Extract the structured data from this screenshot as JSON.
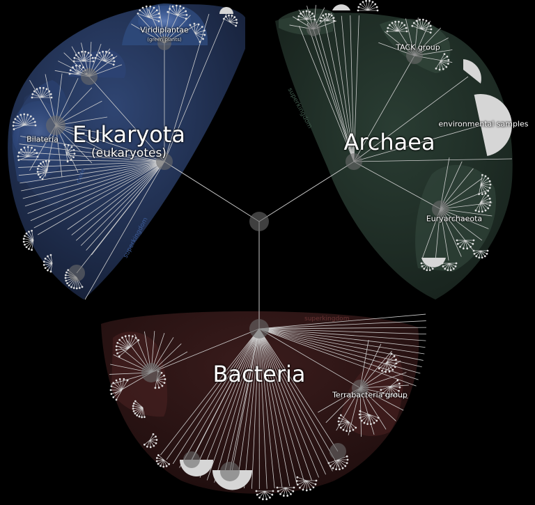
{
  "colors": {
    "background": "#000000",
    "eukaryota_region": "#233356",
    "eukaryota_highlight": "#6f8fcf",
    "archaea_region": "#223128",
    "archaea_highlight": "#7f9a8a",
    "bacteria_region": "#311717",
    "bacteria_highlight": "#8a5a5a",
    "branch": "#d0d0d0",
    "node": "#555555"
  },
  "root": {
    "icon": "root-node-icon"
  },
  "clades": {
    "eukaryota": {
      "name": "Eukaryota",
      "common_name": "(eukaryotes)",
      "rank": "superkingdom"
    },
    "archaea": {
      "name": "Archaea",
      "rank": "superkingdom"
    },
    "bacteria": {
      "name": "Bacteria",
      "rank": "superkingdom"
    }
  },
  "subclades": {
    "viridiplantae": {
      "name": "Viridiplantae",
      "common_name": "(green plants)"
    },
    "bilateria": {
      "name": "Bilateria"
    },
    "clade_rank": "clade",
    "tack": {
      "name": "TACK group"
    },
    "environmental": {
      "name": "environmental samples"
    },
    "euryarchaeota": {
      "name": "Euryarchaeota"
    },
    "terrabacteria": {
      "name": "Terrabacteria group"
    }
  }
}
